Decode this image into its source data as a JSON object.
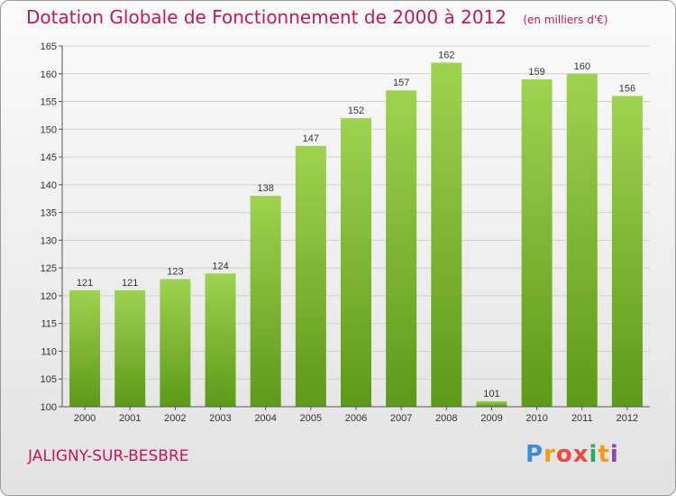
{
  "title": "Dotation Globale de Fonctionnement de 2000 à 2012",
  "unit": "(en milliers d'€)",
  "commune": "JALIGNY-SUR-BESBRE",
  "brand": {
    "letters": [
      "P",
      "r",
      "o",
      "x",
      "i",
      "t",
      "i"
    ],
    "colors": [
      "#3a8fd8",
      "#f39c12",
      "#e74c3c",
      "#e74c3c",
      "#27ae60",
      "#f39c12",
      "#8e44ad"
    ]
  },
  "colors": {
    "bar_top": "#9fd24f",
    "bar_bottom": "#5c9a18",
    "grid": "#cfcfcf",
    "title": "#c2185b"
  },
  "chart_data": {
    "type": "bar",
    "title": "Dotation Globale de Fonctionnement de 2000 à 2012",
    "subtitle": "(en milliers d'€)",
    "categories": [
      "2000",
      "2001",
      "2002",
      "2003",
      "2004",
      "2005",
      "2006",
      "2007",
      "2008",
      "2009",
      "2010",
      "2011",
      "2012"
    ],
    "values": [
      121,
      121,
      123,
      124,
      138,
      147,
      152,
      157,
      162,
      101,
      159,
      160,
      156
    ],
    "yticks": [
      100,
      105,
      110,
      115,
      120,
      125,
      130,
      135,
      140,
      145,
      150,
      155,
      160,
      165
    ],
    "ylim": [
      100,
      165
    ],
    "grid": true,
    "xlabel": "",
    "ylabel": ""
  }
}
